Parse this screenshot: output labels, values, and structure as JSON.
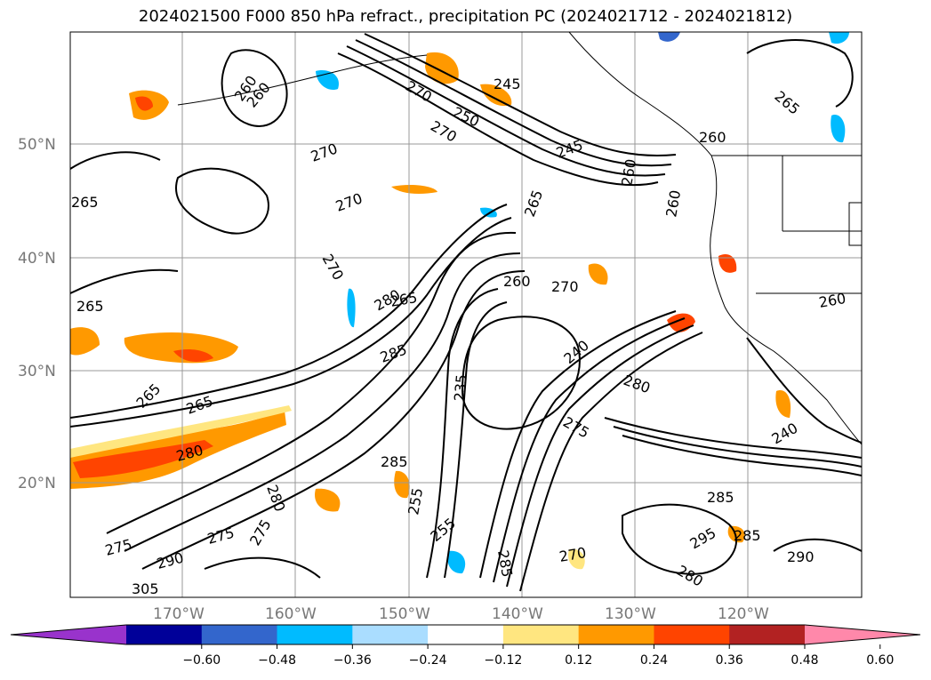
{
  "title": "2024021500 F000 850 hPa refract., precipitation PC (2024021712 - 2024021812)",
  "map": {
    "lat_labels": [
      "50°N",
      "40°N",
      "30°N",
      "20°N"
    ],
    "lon_labels": [
      "170°W",
      "160°W",
      "150°W",
      "140°W",
      "130°W",
      "120°W"
    ],
    "contour_labels": [
      "260",
      "265",
      "270",
      "270",
      "270",
      "265",
      "270",
      "265",
      "270",
      "265",
      "280",
      "285",
      "280",
      "275",
      "285",
      "275",
      "270",
      "255",
      "270",
      "275",
      "250",
      "245",
      "245",
      "260",
      "260",
      "265",
      "260",
      "260",
      "265",
      "240",
      "280",
      "275",
      "235",
      "285",
      "295",
      "285",
      "290",
      "280",
      "240",
      "305",
      "260",
      "265",
      "260",
      "285",
      "280",
      "290",
      "255"
    ],
    "grid_on": true,
    "coastline_color": "#000000"
  },
  "colorbar": {
    "ticks": [
      "−0.60",
      "−0.48",
      "−0.36",
      "−0.24",
      "−0.12",
      "0.12",
      "0.24",
      "0.36",
      "0.48",
      "0.60"
    ],
    "colors": [
      "#9933cc",
      "#000099",
      "#3366cc",
      "#00bbff",
      "#aaddff",
      "#ffffff",
      "#ffe680",
      "#ff9900",
      "#ff4400",
      "#b22222",
      "#ff88aa"
    ],
    "extend": "both"
  }
}
